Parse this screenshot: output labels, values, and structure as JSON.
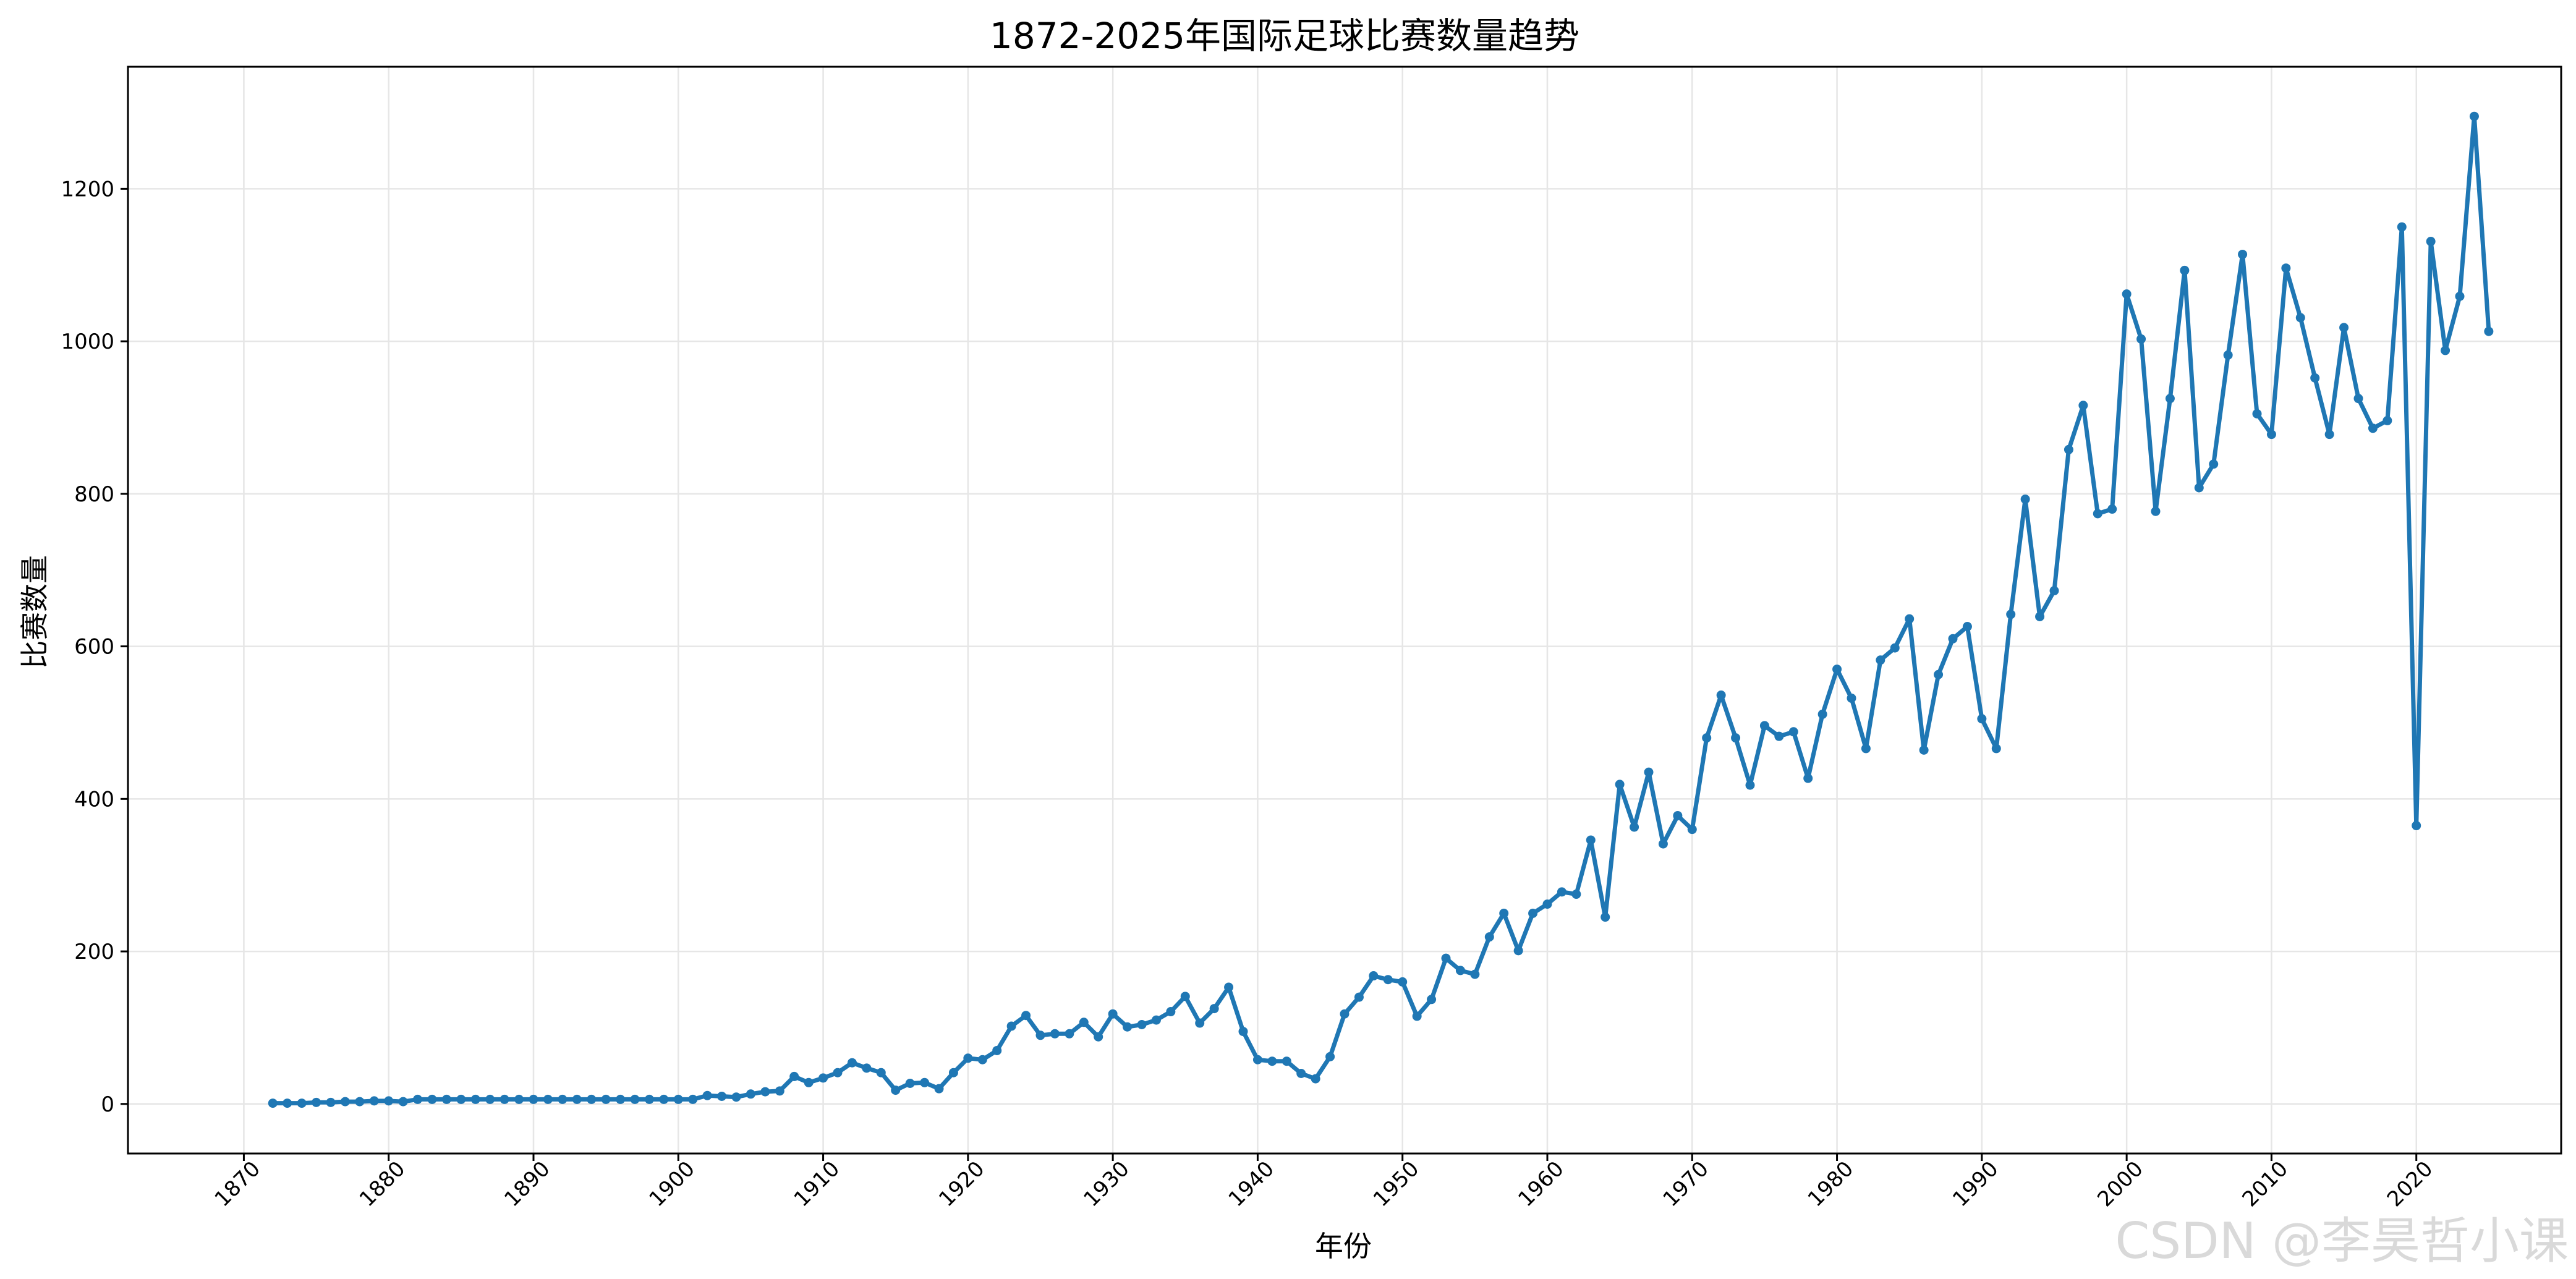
{
  "chart_data": {
    "type": "line",
    "title": "1872-2025年国际足球比赛数量趋势",
    "xlabel": "年份",
    "ylabel": "比赛数量",
    "xlim": [
      1862,
      2030
    ],
    "ylim": [
      -65,
      1360
    ],
    "xticks": [
      1870,
      1880,
      1890,
      1900,
      1910,
      1920,
      1930,
      1940,
      1950,
      1960,
      1970,
      1980,
      1990,
      2000,
      2010,
      2020
    ],
    "yticks": [
      0,
      200,
      400,
      600,
      800,
      1000,
      1200
    ],
    "grid": true,
    "color": "#1f77b4",
    "x": [
      1872,
      1873,
      1874,
      1875,
      1876,
      1877,
      1878,
      1879,
      1880,
      1881,
      1882,
      1883,
      1884,
      1885,
      1886,
      1887,
      1888,
      1889,
      1890,
      1891,
      1892,
      1893,
      1894,
      1895,
      1896,
      1897,
      1898,
      1899,
      1900,
      1901,
      1902,
      1903,
      1904,
      1905,
      1906,
      1907,
      1908,
      1909,
      1910,
      1911,
      1912,
      1913,
      1914,
      1915,
      1916,
      1917,
      1918,
      1919,
      1920,
      1921,
      1922,
      1923,
      1924,
      1925,
      1926,
      1927,
      1928,
      1929,
      1930,
      1931,
      1932,
      1933,
      1934,
      1935,
      1936,
      1937,
      1938,
      1939,
      1940,
      1941,
      1942,
      1943,
      1944,
      1945,
      1946,
      1947,
      1948,
      1949,
      1950,
      1951,
      1952,
      1953,
      1954,
      1955,
      1956,
      1957,
      1958,
      1959,
      1960,
      1961,
      1962,
      1963,
      1964,
      1965,
      1966,
      1967,
      1968,
      1969,
      1970,
      1971,
      1972,
      1973,
      1974,
      1975,
      1976,
      1977,
      1978,
      1979,
      1980,
      1981,
      1982,
      1983,
      1984,
      1985,
      1986,
      1987,
      1988,
      1989,
      1990,
      1991,
      1992,
      1993,
      1994,
      1995,
      1996,
      1997,
      1998,
      1999,
      2000,
      2001,
      2002,
      2003,
      2004,
      2005,
      2006,
      2007,
      2008,
      2009,
      2010,
      2011,
      2012,
      2013,
      2014,
      2015,
      2016,
      2017,
      2018,
      2019,
      2020,
      2021,
      2022,
      2023,
      2024,
      2025
    ],
    "y": [
      1,
      1,
      1,
      2,
      2,
      3,
      3,
      4,
      4,
      3,
      6,
      6,
      6,
      6,
      6,
      6,
      6,
      6,
      6,
      6,
      6,
      6,
      6,
      6,
      6,
      6,
      6,
      6,
      6,
      6,
      11,
      10,
      9,
      13,
      16,
      17,
      36,
      28,
      34,
      41,
      54,
      47,
      41,
      18,
      27,
      28,
      20,
      41,
      60,
      58,
      70,
      102,
      116,
      90,
      92,
      92,
      107,
      88,
      118,
      101,
      104,
      110,
      121,
      141,
      106,
      125,
      153,
      95,
      58,
      56,
      56,
      40,
      33,
      62,
      118,
      140,
      168,
      163,
      160,
      115,
      137,
      191,
      175,
      170,
      219,
      250,
      201,
      250,
      262,
      278,
      275,
      346,
      245,
      419,
      363,
      435,
      341,
      378,
      360,
      480,
      536,
      480,
      418,
      496,
      482,
      488,
      427,
      511,
      570,
      532,
      466,
      582,
      598,
      636,
      464,
      563,
      610,
      626,
      505,
      466,
      642,
      793,
      639,
      673,
      858,
      916,
      774,
      780,
      1062,
      1003,
      777,
      925,
      1093,
      808,
      839,
      982,
      1114,
      905,
      878,
      1096,
      1031,
      952,
      878,
      1018,
      925,
      886,
      896,
      1150,
      365,
      1131,
      988,
      1059,
      1295,
      1013
    ]
  },
  "watermark": "CSDN @李昊哲小课"
}
